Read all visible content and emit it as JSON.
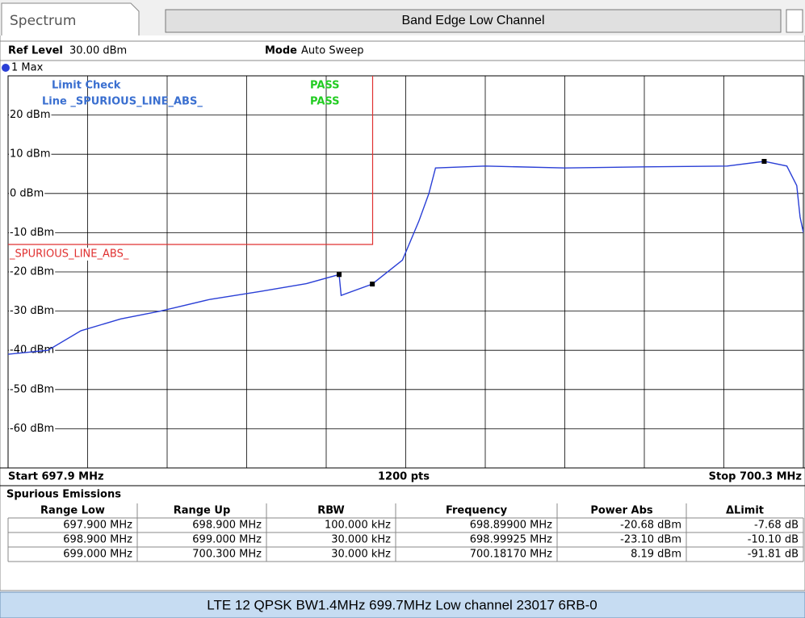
{
  "header": {
    "tab": "Spectrum",
    "title": "Band Edge Low Channel",
    "ref_level_label": "Ref Level",
    "ref_level": "30.00 dBm",
    "mode_label": "Mode",
    "mode": "Auto Sweep"
  },
  "chart_data": {
    "type": "line",
    "xlim": [
      697.9,
      700.3
    ],
    "ylim": [
      -70,
      30
    ],
    "yticks": [
      {
        "value": 20,
        "label": "20 dBm"
      },
      {
        "value": 10,
        "label": "10 dBm"
      },
      {
        "value": 0,
        "label": "0 dBm"
      },
      {
        "value": -10,
        "label": "-10 dBm"
      },
      {
        "value": -20,
        "label": "-20 dBm"
      },
      {
        "value": -30,
        "label": "-30 dBm"
      },
      {
        "value": -40,
        "label": "-40 dBm"
      },
      {
        "value": -50,
        "label": "-50 dBm"
      },
      {
        "value": -60,
        "label": "-60 dBm"
      }
    ],
    "grid": true,
    "annotations": [
      {
        "text": "Limit Check",
        "status": "PASS"
      },
      {
        "text": "Line _SPURIOUS_LINE_ABS_",
        "status": "PASS"
      }
    ],
    "series": [
      {
        "name": "1 Max",
        "color": "#2a3fd6",
        "x": [
          697.9,
          698.02,
          698.12,
          698.24,
          698.36,
          698.51,
          698.66,
          698.8,
          698.899,
          698.905,
          698.999,
          699.09,
          699.14,
          699.17,
          699.19,
          699.34,
          699.58,
          699.82,
          700.07,
          700.1817,
          700.25,
          700.28,
          700.29,
          700.3
        ],
        "values": [
          -41,
          -40,
          -35,
          -32,
          -30,
          -27,
          -25,
          -23,
          -20.68,
          -26,
          -23.1,
          -17,
          -7,
          0,
          6.5,
          7,
          6.5,
          6.8,
          7,
          8.19,
          7,
          2,
          -6,
          -10
        ]
      },
      {
        "name": "_SPURIOUS_LINE_ABS_",
        "color": "#e03030",
        "x": [
          697.9,
          699.0,
          699.0
        ],
        "values": [
          -13,
          -13,
          30
        ]
      },
      {
        "color": "#000000",
        "x": [
          698.899,
          698.99925,
          700.1817
        ],
        "values": [
          -20.68,
          -23.1,
          8.19
        ]
      }
    ]
  },
  "footer": {
    "start": "Start 697.9 MHz",
    "points": "1200 pts",
    "stop": "Stop 700.3 MHz"
  },
  "table": {
    "title": "Spurious Emissions",
    "columns": [
      "Range Low",
      "Range Up",
      "RBW",
      "Frequency",
      "Power Abs",
      "ΔLimit"
    ],
    "rows": [
      [
        "697.900 MHz",
        "698.900 MHz",
        "100.000 kHz",
        "698.89900 MHz",
        "-20.68 dBm",
        "-7.68 dB"
      ],
      [
        "698.900 MHz",
        "699.000 MHz",
        "30.000 kHz",
        "698.99925 MHz",
        "-23.10 dBm",
        "-10.10 dB"
      ],
      [
        "699.000 MHz",
        "700.300 MHz",
        "30.000 kHz",
        "700.18170 MHz",
        "8.19 dBm",
        "-91.81 dB"
      ]
    ]
  },
  "caption": "LTE 12 QPSK BW1.4MHz 699.7MHz Low channel 23017 6RB-0"
}
